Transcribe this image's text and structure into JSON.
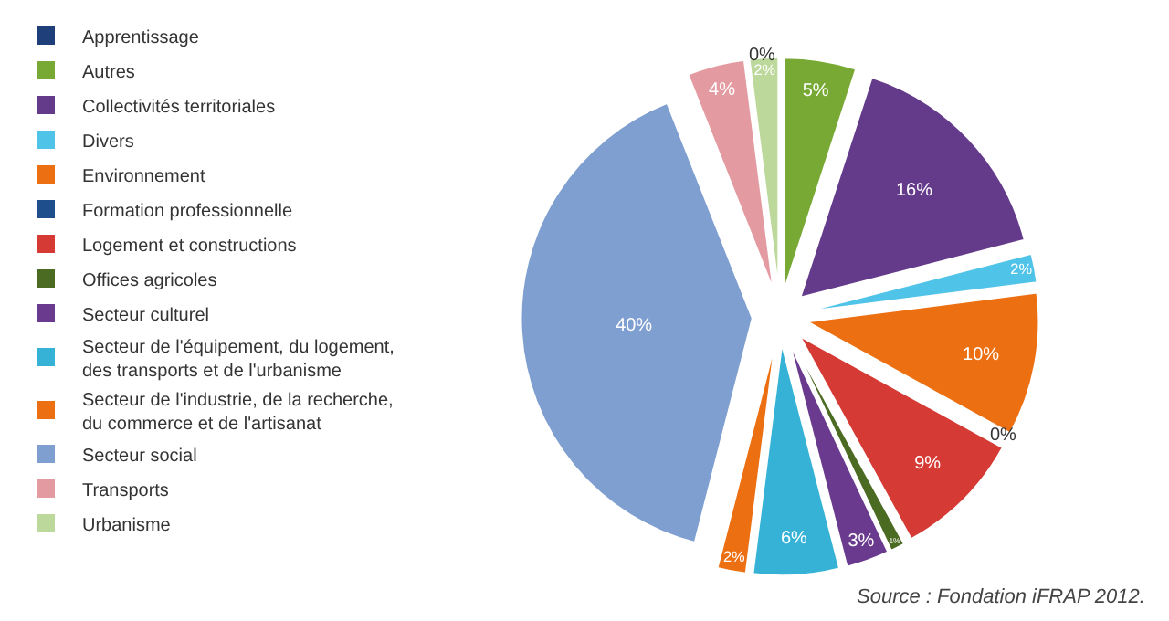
{
  "chart_data": {
    "type": "pie",
    "categories": [
      "Apprentissage",
      "Autres",
      "Collectivités territoriales",
      "Divers",
      "Environnement",
      "Formation professionnelle",
      "Logement et constructions",
      "Offices agricoles",
      "Secteur culturel",
      "Secteur de l'équipement, du logement,\ndes transports et de l'urbanisme",
      "Secteur de l'industrie, de la recherche,\ndu commerce et de l'artisanat",
      "Secteur social",
      "Transports",
      "Urbanisme"
    ],
    "values": [
      0,
      5,
      16,
      2,
      10,
      0,
      9,
      1,
      3,
      6,
      2,
      40,
      4,
      2
    ],
    "value_labels": [
      "0%",
      "5%",
      "16%",
      "2%",
      "10%",
      "0%",
      "9%",
      "1%",
      "3%",
      "6%",
      "2%",
      "40%",
      "4%",
      "2%"
    ],
    "colors": [
      "#1f3f7a",
      "#78a935",
      "#643a8a",
      "#4fc3e8",
      "#ec6f12",
      "#1f4e8c",
      "#d63a35",
      "#4c6b22",
      "#6a3a8e",
      "#35b2d6",
      "#ec6f12",
      "#7f9fd0",
      "#e39aa0",
      "#bcd89a"
    ],
    "legend": "left",
    "annotations": [
      "Source : Fondation iFRAP 2012."
    ]
  }
}
